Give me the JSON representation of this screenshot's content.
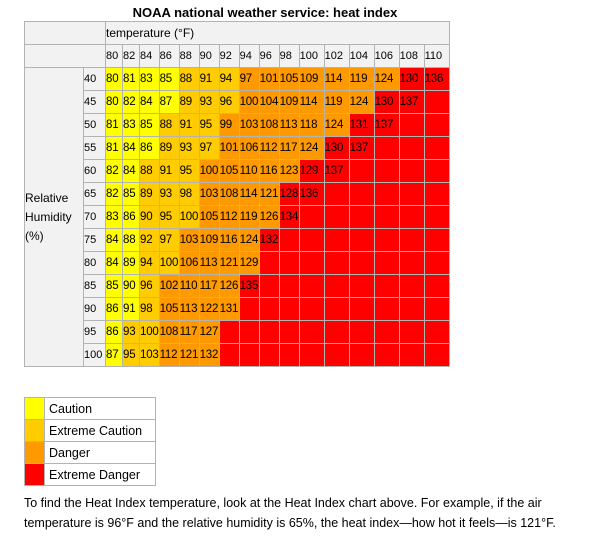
{
  "chart_data": {
    "type": "heatmap",
    "title": "NOAA national weather service: heat index",
    "xlabel": "temperature (°F)",
    "ylabel": "Relative Humidity (%)",
    "x": [
      "80",
      "82",
      "84",
      "86",
      "88",
      "90",
      "92",
      "94",
      "96",
      "98",
      "100",
      "102",
      "104",
      "106",
      "108",
      "110"
    ],
    "y": [
      "40",
      "45",
      "50",
      "55",
      "60",
      "65",
      "70",
      "75",
      "80",
      "85",
      "90",
      "95",
      "100"
    ],
    "values": [
      [
        "80",
        "81",
        "83",
        "85",
        "88",
        "91",
        "94",
        "97",
        "101",
        "105",
        "109",
        "114",
        "119",
        "124",
        "130",
        "136"
      ],
      [
        "80",
        "82",
        "84",
        "87",
        "89",
        "93",
        "96",
        "100",
        "104",
        "109",
        "114",
        "119",
        "124",
        "130",
        "137",
        ""
      ],
      [
        "81",
        "83",
        "85",
        "88",
        "91",
        "95",
        "99",
        "103",
        "108",
        "113",
        "118",
        "124",
        "131",
        "137",
        "",
        ""
      ],
      [
        "81",
        "84",
        "86",
        "89",
        "93",
        "97",
        "101",
        "106",
        "112",
        "117",
        "124",
        "130",
        "137",
        "",
        "",
        ""
      ],
      [
        "82",
        "84",
        "88",
        "91",
        "95",
        "100",
        "105",
        "110",
        "116",
        "123",
        "129",
        "137",
        "",
        "",
        "",
        ""
      ],
      [
        "82",
        "85",
        "89",
        "93",
        "98",
        "103",
        "108",
        "114",
        "121",
        "128",
        "136",
        "",
        "",
        "",
        "",
        ""
      ],
      [
        "83",
        "86",
        "90",
        "95",
        "100",
        "105",
        "112",
        "119",
        "126",
        "134",
        "",
        "",
        "",
        "",
        "",
        ""
      ],
      [
        "84",
        "88",
        "92",
        "97",
        "103",
        "109",
        "116",
        "124",
        "132",
        "",
        "",
        "",
        "",
        "",
        "",
        ""
      ],
      [
        "84",
        "89",
        "94",
        "100",
        "106",
        "113",
        "121",
        "129",
        "",
        "",
        "",
        "",
        "",
        "",
        "",
        ""
      ],
      [
        "85",
        "90",
        "96",
        "102",
        "110",
        "117",
        "126",
        "135",
        "",
        "",
        "",
        "",
        "",
        "",
        "",
        ""
      ],
      [
        "86",
        "91",
        "98",
        "105",
        "113",
        "122",
        "131",
        "",
        "",
        "",
        "",
        "",
        "",
        "",
        "",
        ""
      ],
      [
        "86",
        "93",
        "100",
        "108",
        "117",
        "127",
        "",
        "",
        "",
        "",
        "",
        "",
        "",
        "",
        "",
        ""
      ],
      [
        "87",
        "95",
        "103",
        "112",
        "121",
        "132",
        "",
        "",
        "",
        "",
        "",
        "",
        "",
        "",
        "",
        ""
      ]
    ],
    "categories": [
      {
        "name": "Caution",
        "color": "#ffff00"
      },
      {
        "name": "Extreme Caution",
        "color": "#ffcc00"
      },
      {
        "name": "Danger",
        "color": "#ff9900"
      },
      {
        "name": "Extreme Danger",
        "color": "#ff0000"
      }
    ],
    "category_grid": [
      "0000111222222233",
      "0000111222222333",
      "0001112222223333",
      "0001112222233333",
      "0011122222333333",
      "0011122223333333",
      "0011122223333333",
      "0011222233333333",
      "0011222233333333",
      "0012222333333333",
      "0012222333333333",
      "0112223333333333",
      "0112223333333333"
    ]
  },
  "ylabel_lines": [
    "Relative",
    "Humidity",
    "(%)"
  ],
  "note": "To find the Heat Index temperature, look at the Heat Index chart above. For example, if the air temperature is 96°F and the relative humidity is 65%, the heat index—how hot it feels—is 121°F."
}
